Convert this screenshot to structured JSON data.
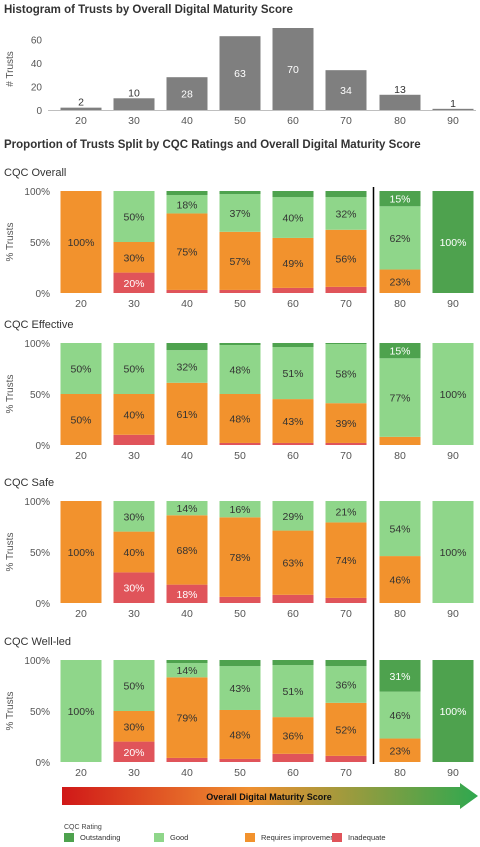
{
  "histogram_title": "Histogram of Trusts by Overall Digital Maturity Score",
  "proportion_title": "Proportion of Trusts Split by CQC Ratings and Overall Digital Maturity Score",
  "arrow_label": "Overall Digital Maturity Score",
  "legend": {
    "title": "CQC Rating",
    "items": [
      {
        "label": "Outstanding",
        "color": "#4ea24e"
      },
      {
        "label": "Good",
        "color": "#8fd68a"
      },
      {
        "label": "Requires improvement",
        "color": "#f2922d"
      },
      {
        "label": "Inadequate",
        "color": "#e0545a"
      }
    ]
  },
  "colors": {
    "histogram_bar": "#7f7f7f",
    "outstanding": "#4ea24e",
    "good": "#8fd68a",
    "requires_improvement": "#f2922d",
    "inadequate": "#e0545a",
    "arrow_start": "#d01818",
    "arrow_mid": "#f09030",
    "arrow_end": "#2fa84f"
  },
  "chart_data": [
    {
      "type": "bar",
      "title": "Histogram of Trusts by Overall Digital Maturity Score",
      "ylabel": "# Trusts",
      "categories": [
        "20",
        "30",
        "40",
        "50",
        "60",
        "70",
        "80",
        "90"
      ],
      "values": [
        2,
        10,
        28,
        63,
        70,
        34,
        13,
        1
      ],
      "data_labels": [
        "2",
        "10",
        "28",
        "63",
        "70",
        "34",
        "13",
        "1"
      ],
      "yticks": [
        "0",
        "20",
        "40",
        "60"
      ],
      "ylim": [
        0,
        70
      ]
    },
    {
      "type": "bar",
      "stacked": true,
      "title": "CQC Overall",
      "ylabel": "% Trusts",
      "yticks": [
        "0%",
        "50%",
        "100%"
      ],
      "categories": [
        "20",
        "30",
        "40",
        "50",
        "60",
        "70",
        "80",
        "90"
      ],
      "series": [
        {
          "name": "Inadequate",
          "values": [
            0,
            20,
            3,
            3,
            5,
            6,
            0,
            0
          ]
        },
        {
          "name": "Requires improvement",
          "values": [
            100,
            30,
            75,
            57,
            49,
            56,
            23,
            0
          ]
        },
        {
          "name": "Good",
          "values": [
            0,
            50,
            18,
            37,
            40,
            32,
            62,
            0
          ]
        },
        {
          "name": "Outstanding",
          "values": [
            0,
            0,
            4,
            3,
            6,
            6,
            15,
            100
          ]
        }
      ],
      "data_labels": [
        [
          "",
          "20%",
          "",
          "",
          "",
          "",
          "",
          ""
        ],
        [
          "100%",
          "30%",
          "75%",
          "57%",
          "49%",
          "56%",
          "23%",
          ""
        ],
        [
          "",
          "50%",
          "18%",
          "37%",
          "40%",
          "32%",
          "62%",
          ""
        ],
        [
          "",
          "",
          "",
          "",
          "",
          "",
          "15%",
          "100%"
        ]
      ]
    },
    {
      "type": "bar",
      "stacked": true,
      "title": "CQC Effective",
      "ylabel": "% Trusts",
      "yticks": [
        "0%",
        "50%",
        "100%"
      ],
      "categories": [
        "20",
        "30",
        "40",
        "50",
        "60",
        "70",
        "80",
        "90"
      ],
      "series": [
        {
          "name": "Inadequate",
          "values": [
            0,
            10,
            0,
            2,
            2,
            2,
            0,
            0
          ]
        },
        {
          "name": "Requires improvement",
          "values": [
            50,
            40,
            61,
            48,
            43,
            39,
            8,
            0
          ]
        },
        {
          "name": "Good",
          "values": [
            50,
            50,
            32,
            48,
            51,
            58,
            77,
            100
          ]
        },
        {
          "name": "Outstanding",
          "values": [
            0,
            0,
            7,
            2,
            4,
            1,
            15,
            0
          ]
        }
      ],
      "data_labels": [
        [
          "",
          "",
          "",
          "",
          "",
          "",
          "",
          ""
        ],
        [
          "50%",
          "40%",
          "61%",
          "48%",
          "43%",
          "39%",
          "",
          ""
        ],
        [
          "50%",
          "50%",
          "32%",
          "48%",
          "51%",
          "58%",
          "77%",
          "100%"
        ],
        [
          "",
          "",
          "",
          "",
          "",
          "",
          "15%",
          ""
        ]
      ]
    },
    {
      "type": "bar",
      "stacked": true,
      "title": "CQC Safe",
      "ylabel": "% Trusts",
      "yticks": [
        "0%",
        "50%",
        "100%"
      ],
      "categories": [
        "20",
        "30",
        "40",
        "50",
        "60",
        "70",
        "80",
        "90"
      ],
      "series": [
        {
          "name": "Inadequate",
          "values": [
            0,
            30,
            18,
            6,
            8,
            5,
            0,
            0
          ]
        },
        {
          "name": "Requires improvement",
          "values": [
            100,
            40,
            68,
            78,
            63,
            74,
            46,
            0
          ]
        },
        {
          "name": "Good",
          "values": [
            0,
            30,
            14,
            16,
            29,
            21,
            54,
            100
          ]
        },
        {
          "name": "Outstanding",
          "values": [
            0,
            0,
            0,
            0,
            0,
            0,
            0,
            0
          ]
        }
      ],
      "data_labels": [
        [
          "",
          "30%",
          "18%",
          "",
          "",
          "",
          "",
          ""
        ],
        [
          "100%",
          "40%",
          "68%",
          "78%",
          "63%",
          "74%",
          "46%",
          ""
        ],
        [
          "",
          "30%",
          "14%",
          "16%",
          "29%",
          "21%",
          "54%",
          "100%"
        ],
        [
          "",
          "",
          "",
          "",
          "",
          "",
          "",
          ""
        ]
      ]
    },
    {
      "type": "bar",
      "stacked": true,
      "title": "CQC Well-led",
      "ylabel": "% Trusts",
      "yticks": [
        "0%",
        "50%",
        "100%"
      ],
      "categories": [
        "20",
        "30",
        "40",
        "50",
        "60",
        "70",
        "80",
        "90"
      ],
      "series": [
        {
          "name": "Inadequate",
          "values": [
            0,
            20,
            4,
            3,
            8,
            6,
            0,
            0
          ]
        },
        {
          "name": "Requires improvement",
          "values": [
            0,
            30,
            79,
            48,
            36,
            52,
            23,
            0
          ]
        },
        {
          "name": "Good",
          "values": [
            100,
            50,
            14,
            43,
            51,
            36,
            46,
            0
          ]
        },
        {
          "name": "Outstanding",
          "values": [
            0,
            0,
            3,
            6,
            5,
            6,
            31,
            100
          ]
        }
      ],
      "data_labels": [
        [
          "",
          "20%",
          "",
          "",
          "",
          "",
          "",
          ""
        ],
        [
          "",
          "30%",
          "79%",
          "48%",
          "36%",
          "52%",
          "23%",
          ""
        ],
        [
          "100%",
          "50%",
          "14%",
          "43%",
          "51%",
          "36%",
          "46%",
          ""
        ],
        [
          "",
          "",
          "",
          "",
          "",
          "",
          "31%",
          "100%"
        ]
      ]
    }
  ]
}
